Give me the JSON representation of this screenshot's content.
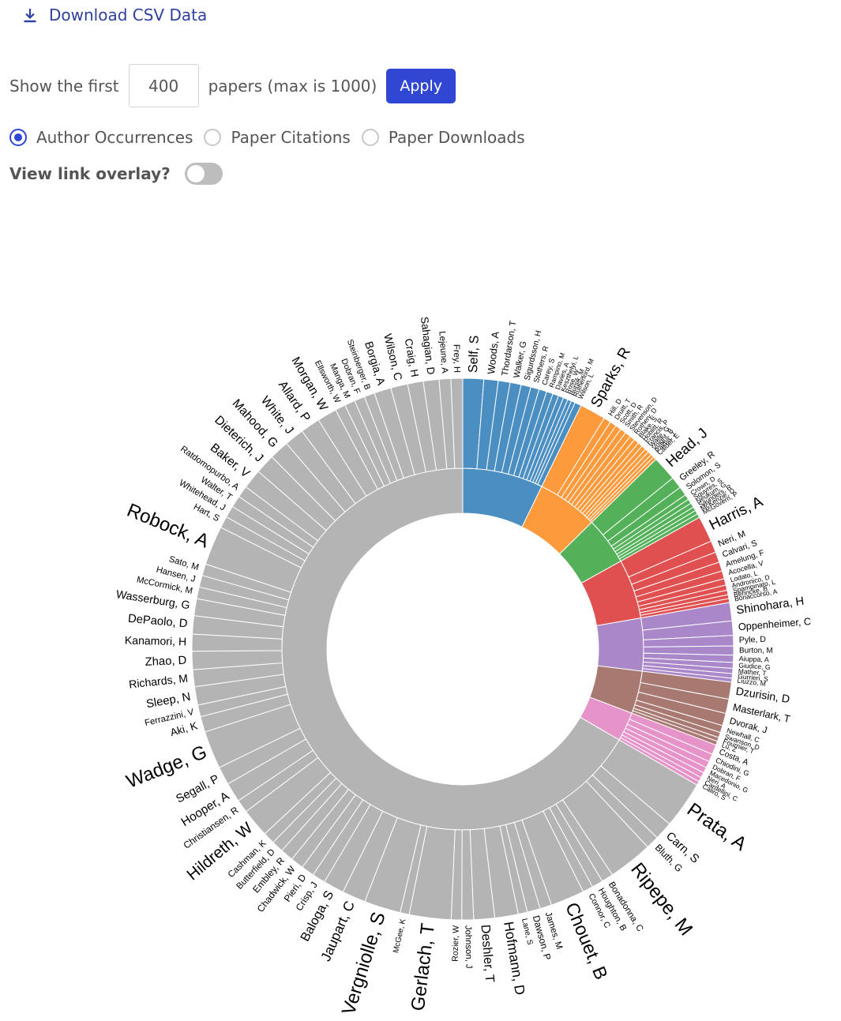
{
  "download": {
    "label": "Download CSV Data"
  },
  "controls": {
    "prefix": "Show the first",
    "value": "400",
    "suffix": "papers (max is 1000)",
    "apply_label": "Apply"
  },
  "radios": [
    {
      "label": "Author Occurrences",
      "selected": true
    },
    {
      "label": "Paper Citations",
      "selected": false
    },
    {
      "label": "Paper Downloads",
      "selected": false
    }
  ],
  "toggle": {
    "label": "View link overlay?",
    "on": false
  },
  "colors": {
    "accent": "#3047d4",
    "link": "#2f3f9f"
  },
  "chart_data": {
    "type": "sunburst",
    "title": "",
    "groups": [
      {
        "color": "#4a8ec2",
        "authors": [
          "Self, S",
          "Woods, A",
          "Thordarson, T",
          "Walker, G",
          "Sigurdsson, H",
          "Stothers, R",
          "Carey, S",
          "Rampino, M",
          "Davies, A",
          "Keszthelyi, L",
          "Rose, W",
          "Bursik, M",
          "Rutherford, M",
          "Wilson, L"
        ],
        "weights": [
          1.6,
          1.1,
          0.9,
          0.85,
          0.75,
          0.65,
          0.6,
          0.5,
          0.45,
          0.4,
          0.35,
          0.3,
          0.3,
          0.5
        ]
      },
      {
        "color": "#fd9a3c",
        "authors": [
          "Sparks, R",
          "Hill, D",
          "Druitt, T",
          "Scott, D",
          "Smith, R",
          "Stevenson, D",
          "Rothery, D",
          "Blake, S",
          "Hoblitt, R",
          "Francis, P",
          "Waite, G",
          "Voight, B",
          "Palma, J",
          "Calder, E"
        ],
        "weights": [
          2.0,
          0.55,
          0.5,
          0.45,
          0.45,
          0.45,
          0.4,
          0.4,
          0.35,
          0.35,
          0.3,
          0.3,
          0.25,
          0.25
        ]
      },
      {
        "color": "#54b15a",
        "authors": [
          "Head, J",
          "Greeley, R",
          "Solomon, S",
          "Crown, D",
          "Squyres, S",
          "Neukum, G",
          "Saunders, R",
          "McKenzie, D",
          "McGovern, P"
        ],
        "weights": [
          1.9,
          0.9,
          0.7,
          0.4,
          0.35,
          0.35,
          0.3,
          0.3,
          0.3
        ]
      },
      {
        "color": "#e05050",
        "authors": [
          "Harris, A",
          "Neri, M",
          "Calvari, S",
          "Amelung, F",
          "Acocella, V",
          "Lodato, L",
          "Andronico, D",
          "Spampinato, L",
          "Behncke, B",
          "Bonaccorso, A"
        ],
        "weights": [
          2.0,
          0.9,
          0.8,
          0.7,
          0.6,
          0.5,
          0.4,
          0.35,
          0.3,
          0.3
        ]
      },
      {
        "color": "#a987c8",
        "authors": [
          "Shinohara, H",
          "Oppenheimer, C",
          "Pyle, D",
          "Burton, M",
          "Aiuppa, A",
          "Giudice, G",
          "Mather, T",
          "Gurrieri, S",
          "Liuzzo, M"
        ],
        "weights": [
          1.4,
          1.1,
          0.8,
          0.7,
          0.55,
          0.45,
          0.4,
          0.35,
          0.3
        ]
      },
      {
        "color": "#a77971",
        "authors": [
          "Dzurisin, D",
          "Masterlark, T",
          "Dvorak, J",
          "Newhall, C",
          "Swanson, D",
          "Fournier, T",
          "Lu, Z"
        ],
        "weights": [
          1.3,
          1.1,
          0.95,
          0.55,
          0.4,
          0.3,
          0.3
        ]
      },
      {
        "color": "#e693c9",
        "authors": [
          "Costa, A",
          "Chiodini, G",
          "Dobran, F",
          "Macedonio, G",
          "Neri, A",
          "Cardellini, C",
          "Caliro, S"
        ],
        "weights": [
          0.75,
          0.6,
          0.5,
          0.45,
          0.4,
          0.35,
          0.3
        ]
      },
      {
        "color": "#b4b4b4",
        "authors": [
          "Prata, A",
          "Carn, S",
          "Bluth, G",
          "Ripepe, M",
          "Bonadonna, C",
          "Houghton, B",
          "Connor, C",
          "Chouet, B",
          "James, M",
          "Dawson, P",
          "Lane, S",
          "Hofmann, D",
          "Deshler, T",
          "Johnson, J",
          "Rozier, W",
          "Gerlach, T",
          "McGee, K",
          "Vergniolle, S",
          "Jaupart, C",
          "Baloga, S",
          "Crisp, J",
          "Pieri, D",
          "Chadwick, W",
          "Embley, R",
          "Butterfield, D",
          "Cashman, K",
          "Hildreth, W",
          "Christiansen, R",
          "Hooper, A",
          "Segall, P",
          "Wadge, G",
          "Aki, K",
          "Ferrazzini, V",
          "Sleep, N",
          "Richards, M",
          "Zhao, D",
          "Kanamori, H",
          "DePaolo, D",
          "Wasserburg, G",
          "McCormick, M",
          "Hansen, J",
          "Sato, M",
          "Robock, A",
          "Hart, S",
          "Whitehead, J",
          "Walter, T",
          "Ratdomopurbo, A",
          "Baker, V",
          "Dieterich, J",
          "Mahood, G",
          "White, J",
          "Allard, P",
          "Morgan, W",
          "Ellsworth, W",
          "Manga, M",
          "Dobran, F",
          "Steinberger, B",
          "Borgia, A",
          "Wilson, C",
          "Craig, H",
          "Sahagian, D",
          "Lejeune, A",
          "Frey, H"
        ],
        "weights": [
          3.6,
          1.4,
          1.0,
          3.4,
          0.9,
          0.85,
          0.8,
          2.6,
          0.9,
          1.0,
          0.7,
          1.8,
          1.6,
          0.9,
          0.8,
          3.2,
          0.7,
          2.8,
          1.8,
          1.6,
          1.0,
          1.0,
          1.0,
          1.0,
          0.9,
          0.9,
          2.2,
          1.0,
          1.5,
          1.4,
          2.9,
          1.2,
          0.9,
          1.4,
          1.3,
          1.4,
          1.3,
          1.4,
          1.3,
          0.9,
          0.9,
          0.9,
          3.0,
          0.9,
          0.9,
          0.9,
          0.9,
          1.5,
          1.5,
          1.5,
          1.5,
          1.5,
          1.5,
          0.8,
          0.8,
          0.8,
          0.8,
          1.3,
          1.3,
          1.2,
          1.2,
          0.9,
          0.9
        ]
      }
    ]
  }
}
